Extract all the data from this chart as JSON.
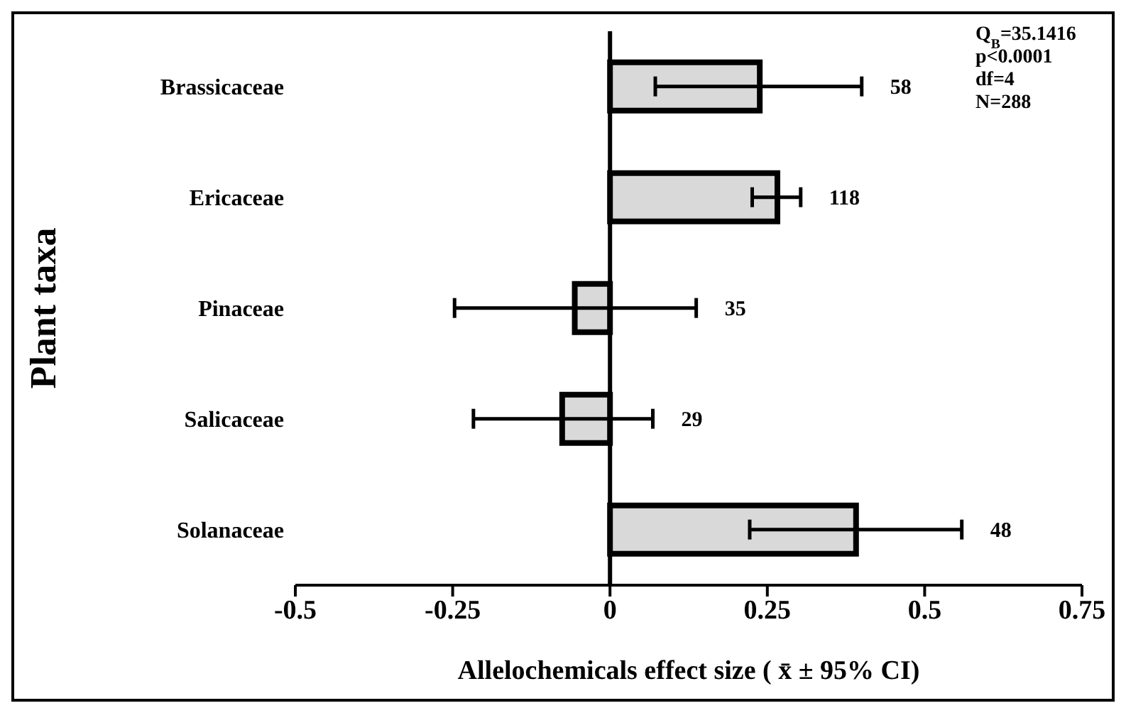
{
  "chart_data": {
    "type": "bar",
    "orientation": "horizontal",
    "xlabel": "Allelochemicals effect size ( x̄ ± 95% CI)",
    "ylabel": "Plant taxa",
    "categories": [
      "Brassicaceae",
      "Ericaceae",
      "Pinaceae",
      "Salicaceae",
      "Solanaceae"
    ],
    "values": [
      0.238,
      0.266,
      -0.056,
      -0.076,
      0.391
    ],
    "errors": [
      [
        0.072,
        0.4
      ],
      [
        0.226,
        0.303
      ],
      [
        -0.247,
        0.137
      ],
      [
        -0.217,
        0.068
      ],
      [
        0.222,
        0.559
      ]
    ],
    "color": "#d9d9d9",
    "xlim": [
      -0.5,
      0.75
    ],
    "xticks": [
      -0.5,
      -0.25,
      0,
      0.25,
      0.5,
      0.75
    ],
    "annotations": [
      "Q$_{B}$=35.1416",
      "p<0.0001",
      "df=4",
      "N=288",
      {
        "text": "58",
        "x": 0.4,
        "y": "Brassicaceae"
      },
      {
        "text": "118",
        "x": 0.303,
        "y": "Ericaceae"
      },
      {
        "text": "35",
        "x": 0.137,
        "y": "Pinaceae"
      },
      {
        "text": "29",
        "x": 0.068,
        "y": "Salicaceae"
      },
      {
        "text": "48",
        "x": 0.559,
        "y": "Solanaceae"
      }
    ]
  }
}
